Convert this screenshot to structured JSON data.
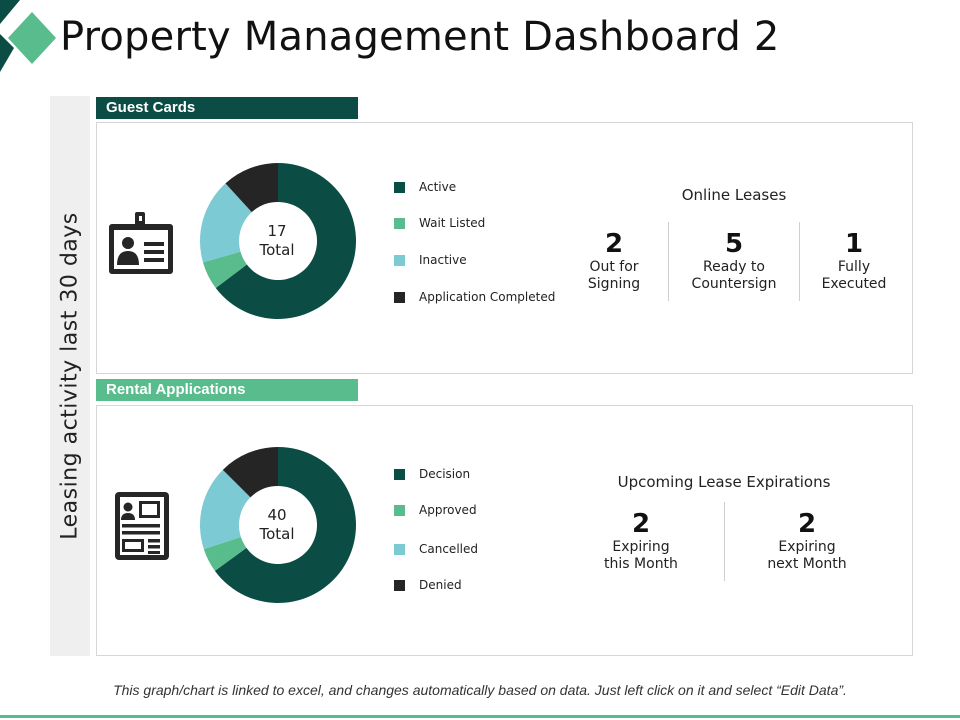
{
  "title": "Property Management Dashboard 2",
  "side_label": "Leasing activity last 30 days",
  "colors": {
    "dark_teal": "#0b4d44",
    "green": "#58bc8c",
    "light_blue": "#7ccad3",
    "dark": "#252525"
  },
  "guest_cards": {
    "tab_label": "Guest Cards",
    "icon": "id-badge-icon",
    "total_value": "17",
    "total_label": "Total",
    "legend": [
      "Active",
      "Wait Listed",
      "Inactive",
      "Application Completed"
    ],
    "online_leases": {
      "title": "Online Leases",
      "stats": [
        {
          "value": "2",
          "label_line1": "Out for",
          "label_line2": "Signing"
        },
        {
          "value": "5",
          "label_line1": "Ready to",
          "label_line2": "Countersign"
        },
        {
          "value": "1",
          "label_line1": "Fully",
          "label_line2": "Executed"
        }
      ]
    }
  },
  "rental_applications": {
    "tab_label": "Rental Applications",
    "icon": "application-form-icon",
    "total_value": "40",
    "total_label": "Total",
    "legend": [
      "Decision",
      "Approved",
      "Cancelled",
      "Denied"
    ],
    "lease_expirations": {
      "title": "Upcoming Lease Expirations",
      "stats": [
        {
          "value": "2",
          "label_line1": "Expiring",
          "label_line2": "this Month"
        },
        {
          "value": "2",
          "label_line1": "Expiring",
          "label_line2": "next Month"
        }
      ]
    }
  },
  "chart_data": [
    {
      "type": "pie",
      "name": "guest-cards-donut",
      "categories": [
        "Active",
        "Wait Listed",
        "Inactive",
        "Application Completed"
      ],
      "values": [
        11,
        1,
        3,
        2
      ],
      "total": 17,
      "colors": [
        "#0b4d44",
        "#58bc8c",
        "#7ccad3",
        "#252525"
      ],
      "legend": "right"
    },
    {
      "type": "pie",
      "name": "rental-applications-donut",
      "categories": [
        "Decision",
        "Approved",
        "Cancelled",
        "Denied"
      ],
      "values": [
        26,
        2,
        7,
        5
      ],
      "total": 40,
      "colors": [
        "#0b4d44",
        "#58bc8c",
        "#7ccad3",
        "#252525"
      ],
      "legend": "right"
    }
  ],
  "footer_note": "This graph/chart is linked to excel, and changes automatically based on data. Just left click on it and select “Edit Data”."
}
